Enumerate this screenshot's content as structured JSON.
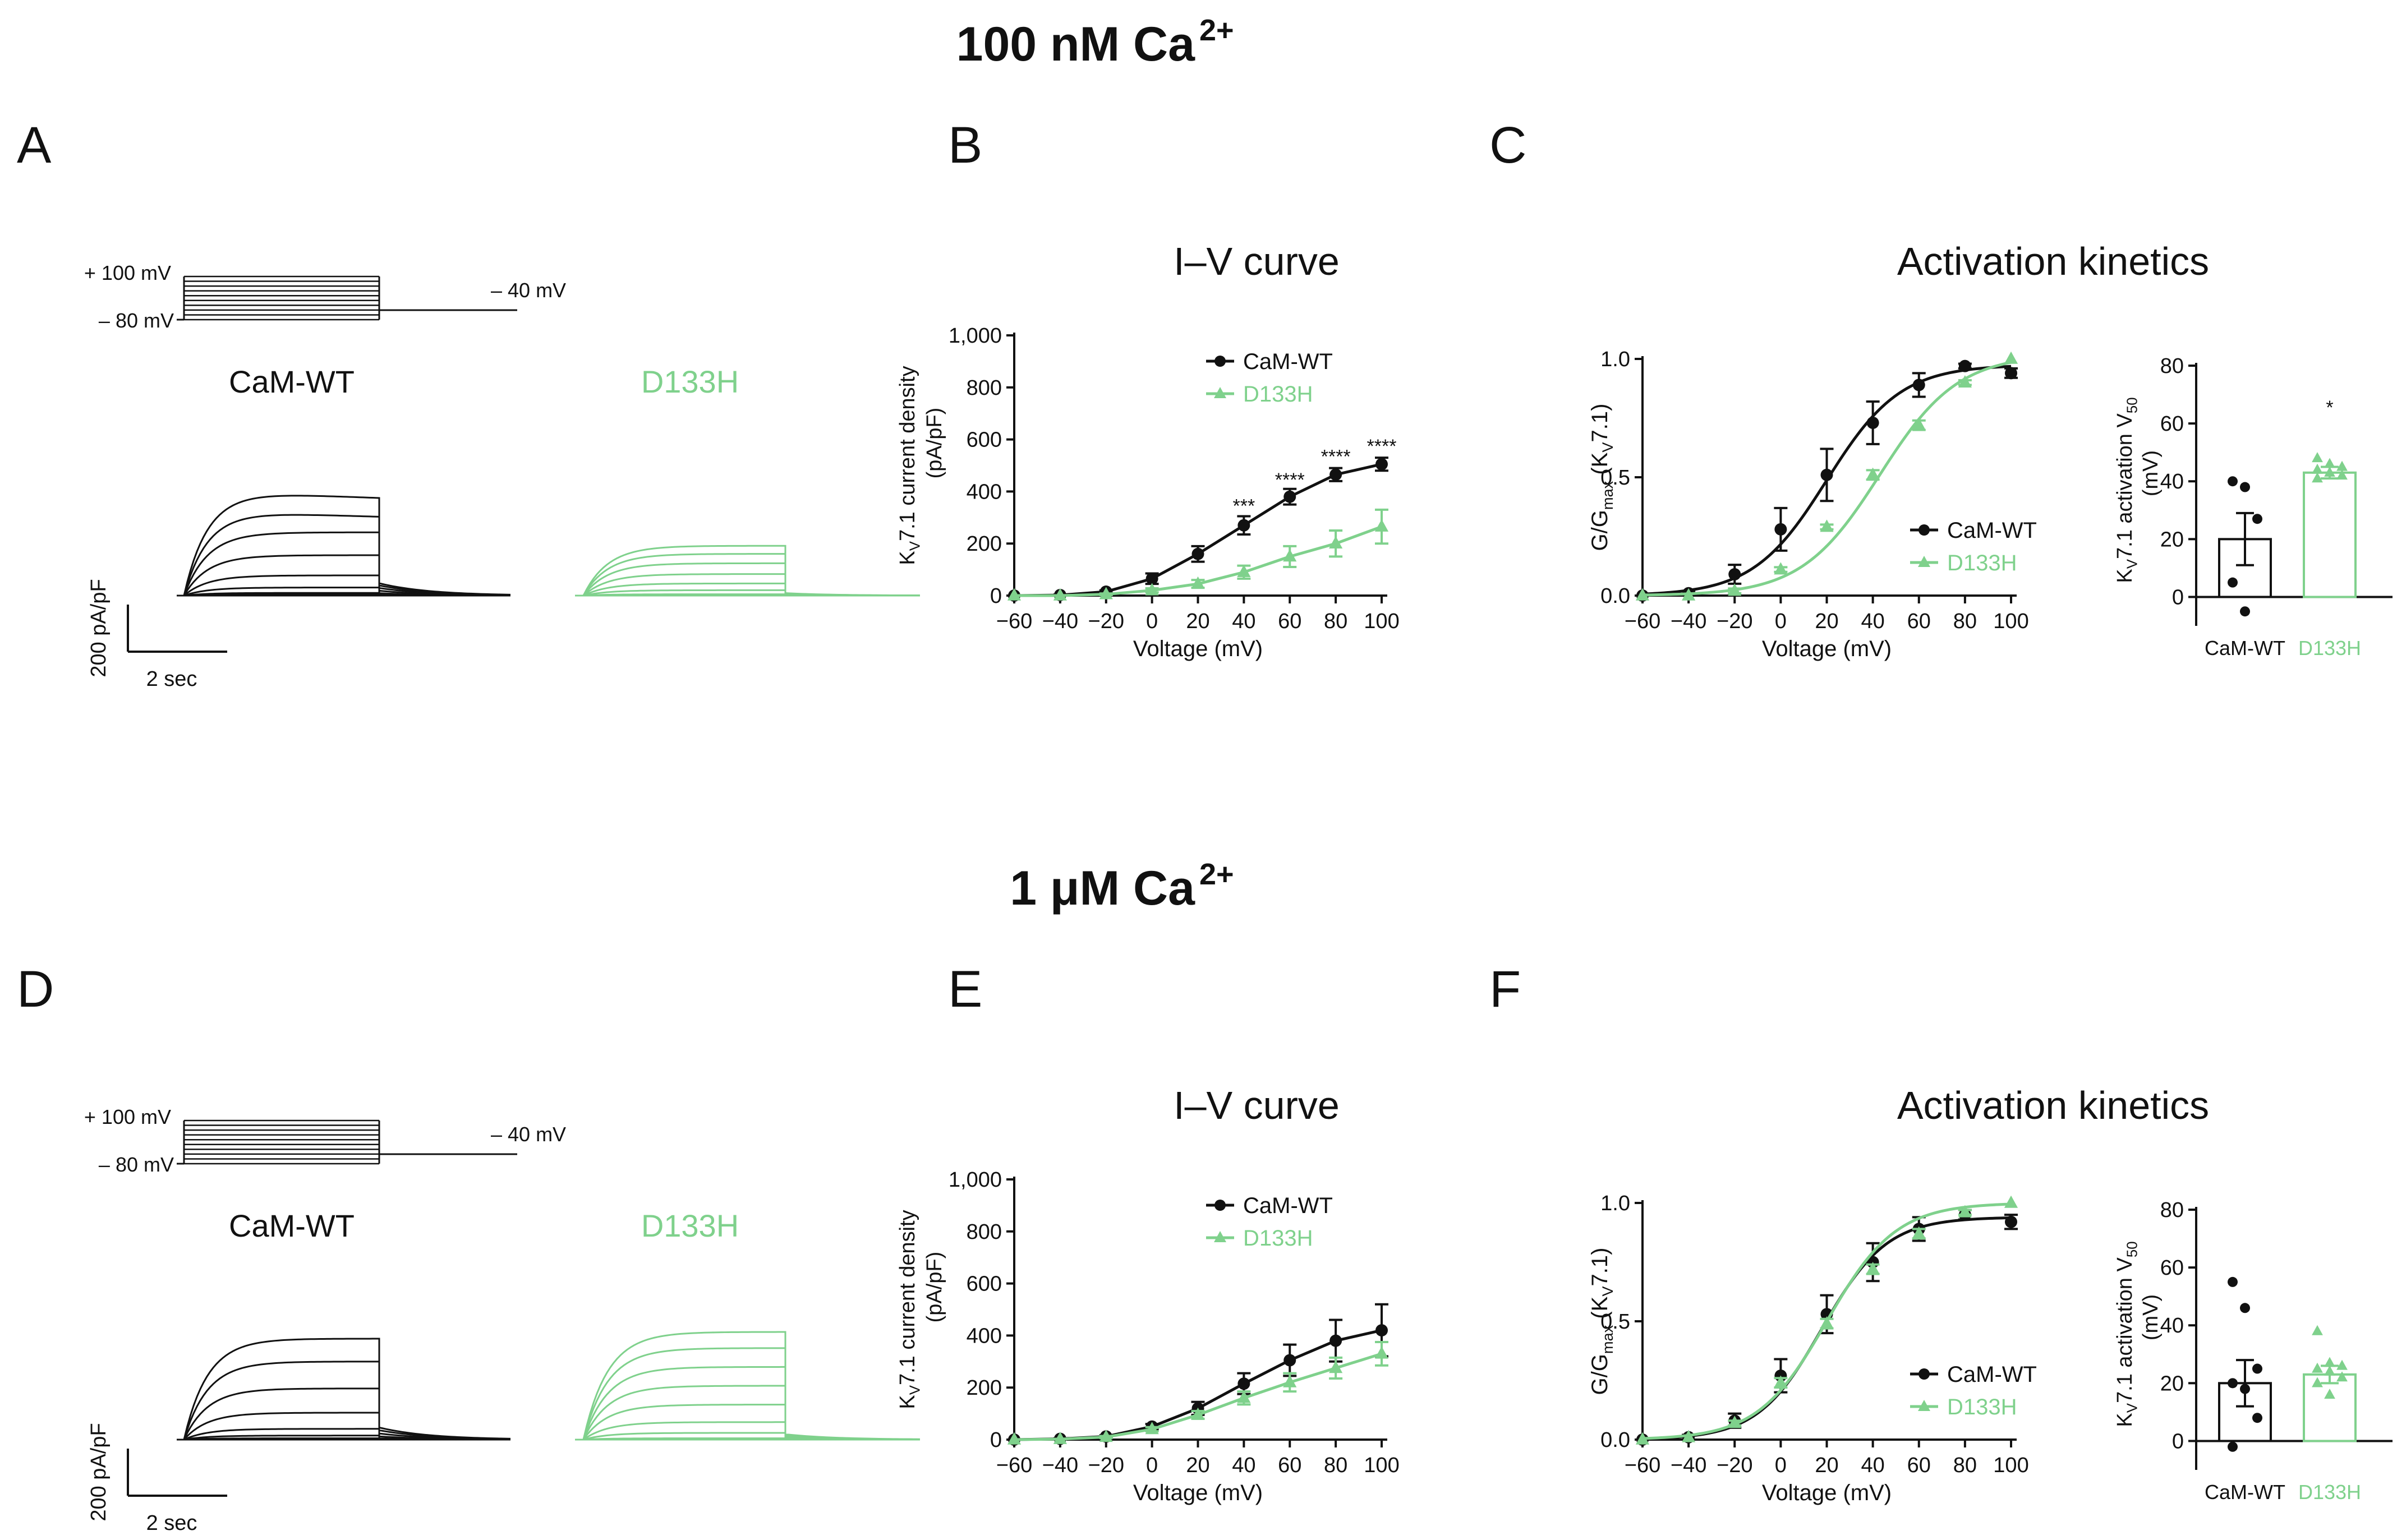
{
  "colors": {
    "wt": "#111111",
    "mut": "#7fd18c",
    "axis": "#111111"
  },
  "sections": [
    {
      "heading": "100 nM Ca",
      "heading_sup": "2+",
      "panel_letters": {
        "a": "A",
        "b": "B",
        "c": "C"
      },
      "protocol": {
        "top_label": "+ 100 mV",
        "bottom_label": "– 80 mV",
        "tail_label": "– 40 mV"
      },
      "trace_labels": {
        "wt": "CaM-WT",
        "mut": "D133H"
      },
      "trace_steady_levels": {
        "wt": [
          0.01,
          0.02,
          0.06,
          0.15,
          0.3,
          0.47,
          0.63,
          0.78
        ],
        "mut": [
          0.01,
          0.04,
          0.09,
          0.16,
          0.24,
          0.31,
          0.37
        ]
      },
      "scale_bar": {
        "y": "200 pA/pF",
        "x": "2 sec"
      },
      "iv_title": "I–V curve",
      "kin_title": "Activation kinetics"
    },
    {
      "heading": "1 μM Ca",
      "heading_sup": "2+",
      "panel_letters": {
        "a": "D",
        "b": "E",
        "c": "F"
      },
      "protocol": {
        "top_label": "+ 100 mV",
        "bottom_label": "– 80 mV",
        "tail_label": "– 40 mV"
      },
      "trace_labels": {
        "wt": "CaM-WT",
        "mut": "D133H"
      },
      "trace_steady_levels": {
        "wt": [
          0.01,
          0.03,
          0.08,
          0.2,
          0.38,
          0.58,
          0.75
        ],
        "mut": [
          0.01,
          0.05,
          0.13,
          0.26,
          0.4,
          0.54,
          0.68,
          0.8
        ]
      },
      "scale_bar": {
        "y": "200 pA/pF",
        "x": "2 sec"
      },
      "iv_title": "I–V curve",
      "kin_title": "Activation kinetics"
    }
  ],
  "chart_data": [
    {
      "type": "line",
      "title": "I–V curve",
      "xlabel": "Voltage (mV)",
      "ylabel": "K",
      "ylabel_sub": "V",
      "ylabel_rest": "7.1 current density",
      "ylabel_line2": "(pA/pF)",
      "xlim": [
        -60,
        100
      ],
      "ylim": [
        0,
        1000
      ],
      "xticks": [
        "−60",
        "−40",
        "−20",
        "0",
        "20",
        "40",
        "60",
        "80",
        "100"
      ],
      "yticks": [
        "0",
        "200",
        "400",
        "600",
        "800",
        "1,000"
      ],
      "legend": "top-left",
      "x": [
        -60,
        -40,
        -20,
        0,
        20,
        40,
        60,
        80,
        100
      ],
      "series": [
        {
          "name": "CaM-WT",
          "values": [
            0,
            2,
            15,
            65,
            160,
            270,
            380,
            465,
            505
          ],
          "errors": [
            0,
            2,
            5,
            20,
            30,
            35,
            30,
            25,
            25
          ]
        },
        {
          "name": "D133H",
          "values": [
            0,
            0,
            5,
            20,
            45,
            90,
            150,
            200,
            265
          ],
          "errors": [
            0,
            0,
            3,
            8,
            15,
            25,
            40,
            50,
            65
          ]
        }
      ],
      "annotations": [
        {
          "x": 40,
          "y": 350,
          "text": "***"
        },
        {
          "x": 60,
          "y": 450,
          "text": "****"
        },
        {
          "x": 80,
          "y": 540,
          "text": "****"
        },
        {
          "x": 100,
          "y": 580,
          "text": "****"
        }
      ]
    },
    {
      "type": "line",
      "title": "Activation kinetics",
      "xlabel": "Voltage (mV)",
      "ylabel": "G/G",
      "ylabel_sub": "max",
      "ylabel_rest": " (K",
      "ylabel_sub2": "V",
      "ylabel_end": "7.1)",
      "xlim": [
        -60,
        100
      ],
      "ylim": [
        0,
        1.0
      ],
      "xticks": [
        "−60",
        "−40",
        "−20",
        "0",
        "20",
        "40",
        "60",
        "80",
        "100"
      ],
      "yticks": [
        "0.0",
        "0.5",
        "1.0"
      ],
      "legend": "bottom-right",
      "x": [
        -60,
        -40,
        -20,
        0,
        20,
        40,
        60,
        80,
        100
      ],
      "series": [
        {
          "name": "CaM-WT",
          "values": [
            0,
            0.01,
            0.09,
            0.28,
            0.51,
            0.73,
            0.89,
            0.97,
            0.94
          ],
          "errors": [
            0,
            0.01,
            0.04,
            0.09,
            0.11,
            0.09,
            0.05,
            0.01,
            0.02
          ],
          "fit_v50": 20,
          "fit_k": 16,
          "fit_max": 0.975
        },
        {
          "name": "D133H",
          "values": [
            0,
            0,
            0.02,
            0.11,
            0.29,
            0.51,
            0.72,
            0.9,
            1.0
          ],
          "errors": [
            0,
            0,
            0.01,
            0.01,
            0.01,
            0.02,
            0.02,
            0.01,
            0.0
          ],
          "fit_v50": 43,
          "fit_k": 17,
          "fit_max": 1.02
        }
      ]
    },
    {
      "type": "bar",
      "xlabel": "",
      "ylabel": "K",
      "ylabel_sub": "V",
      "ylabel_rest": "7.1 activation V",
      "ylabel_sub2": "50",
      "ylabel_line2": "(mV)",
      "ylim": [
        -10,
        80
      ],
      "yticks": [
        "0",
        "20",
        "40",
        "60",
        "80"
      ],
      "categories": [
        "CaM-WT",
        "D133H"
      ],
      "values": [
        20,
        43
      ],
      "errors": [
        9,
        2
      ],
      "points": [
        [
          40,
          38,
          27,
          5,
          -5
        ],
        [
          48,
          46,
          45,
          44,
          43,
          42,
          41
        ]
      ],
      "annotations": [
        {
          "category": "D133H",
          "y": 66,
          "text": "*"
        }
      ]
    },
    {
      "type": "line",
      "title": "I–V curve",
      "xlabel": "Voltage (mV)",
      "ylabel": "K",
      "ylabel_sub": "V",
      "ylabel_rest": "7.1 current density",
      "ylabel_line2": "(pA/pF)",
      "xlim": [
        -60,
        100
      ],
      "ylim": [
        0,
        1000
      ],
      "xticks": [
        "−60",
        "−40",
        "−20",
        "0",
        "20",
        "40",
        "60",
        "80",
        "100"
      ],
      "yticks": [
        "0",
        "200",
        "400",
        "600",
        "800",
        "1,000"
      ],
      "legend": "top-left",
      "x": [
        -60,
        -40,
        -20,
        0,
        20,
        40,
        60,
        80,
        100
      ],
      "series": [
        {
          "name": "CaM-WT",
          "values": [
            0,
            3,
            12,
            50,
            120,
            215,
            305,
            380,
            420
          ],
          "errors": [
            0,
            2,
            5,
            10,
            25,
            40,
            60,
            80,
            100
          ]
        },
        {
          "name": "D133H",
          "values": [
            0,
            2,
            10,
            40,
            95,
            160,
            220,
            275,
            330
          ],
          "errors": [
            0,
            1,
            4,
            8,
            15,
            25,
            35,
            40,
            45
          ]
        }
      ],
      "annotations": []
    },
    {
      "type": "line",
      "title": "Activation kinetics",
      "xlabel": "Voltage (mV)",
      "ylabel": "G/G",
      "ylabel_sub": "max",
      "ylabel_rest": " (K",
      "ylabel_sub2": "V",
      "ylabel_end": "7.1)",
      "xlim": [
        -60,
        100
      ],
      "ylim": [
        0,
        1.0
      ],
      "xticks": [
        "−60",
        "−40",
        "−20",
        "0",
        "20",
        "40",
        "60",
        "80",
        "100"
      ],
      "yticks": [
        "0.0",
        "0.5",
        "1.0"
      ],
      "legend": "bottom-right",
      "x": [
        -60,
        -40,
        -20,
        0,
        20,
        40,
        60,
        80,
        100
      ],
      "series": [
        {
          "name": "CaM-WT",
          "values": [
            0,
            0.01,
            0.08,
            0.27,
            0.53,
            0.75,
            0.89,
            0.95,
            0.92
          ],
          "errors": [
            0,
            0.01,
            0.03,
            0.07,
            0.08,
            0.08,
            0.05,
            0.02,
            0.03
          ],
          "fit_v50": 18,
          "fit_k": 14,
          "fit_max": 0.94
        },
        {
          "name": "D133H",
          "values": [
            0,
            0.01,
            0.07,
            0.24,
            0.49,
            0.72,
            0.87,
            0.96,
            1.0
          ],
          "errors": [
            0,
            0,
            0.01,
            0.02,
            0.02,
            0.02,
            0.02,
            0.01,
            0.0
          ],
          "fit_v50": 20,
          "fit_k": 15,
          "fit_max": 1.0
        }
      ]
    },
    {
      "type": "bar",
      "xlabel": "",
      "ylabel": "K",
      "ylabel_sub": "V",
      "ylabel_rest": "7.1 activation V",
      "ylabel_sub2": "50",
      "ylabel_line2": "(mV)",
      "ylim": [
        -10,
        80
      ],
      "yticks": [
        "0",
        "20",
        "40",
        "60",
        "80"
      ],
      "categories": [
        "CaM-WT",
        "D133H"
      ],
      "values": [
        20,
        23
      ],
      "errors": [
        8,
        3
      ],
      "points": [
        [
          55,
          46,
          25,
          20,
          18,
          8,
          -2
        ],
        [
          38,
          27,
          26,
          25,
          24,
          22,
          20,
          16
        ]
      ],
      "annotations": []
    }
  ]
}
